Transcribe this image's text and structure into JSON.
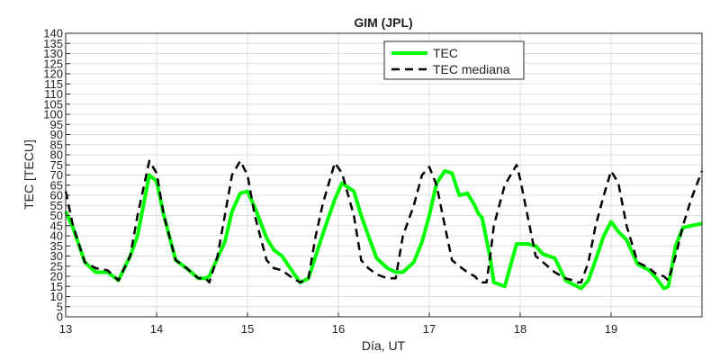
{
  "chart_data": {
    "type": "line",
    "title": "GIM (JPL)",
    "xlabel": "Día, UT",
    "ylabel": "TEC [TECU]",
    "xlim": [
      13,
      20
    ],
    "ylim": [
      0,
      140
    ],
    "x_ticks": [
      13,
      14,
      15,
      16,
      17,
      18,
      19
    ],
    "y_ticks": [
      0,
      5,
      10,
      15,
      20,
      25,
      30,
      35,
      40,
      45,
      50,
      55,
      60,
      65,
      70,
      75,
      80,
      85,
      90,
      95,
      100,
      105,
      110,
      115,
      120,
      125,
      130,
      135,
      140
    ],
    "grid": true,
    "legend_position": "top-right",
    "series": [
      {
        "name": "TEC",
        "color": "#00ff00",
        "style": "solid",
        "x": [
          13.0,
          13.08,
          13.21,
          13.33,
          13.46,
          13.58,
          13.71,
          13.79,
          13.92,
          14.0,
          14.08,
          14.21,
          14.33,
          14.46,
          14.54,
          14.58,
          14.67,
          14.75,
          14.83,
          14.92,
          15.0,
          15.08,
          15.21,
          15.29,
          15.38,
          15.5,
          15.58,
          15.67,
          15.75,
          15.83,
          15.96,
          16.04,
          16.17,
          16.25,
          16.33,
          16.42,
          16.54,
          16.63,
          16.71,
          16.83,
          16.92,
          17.0,
          17.08,
          17.17,
          17.25,
          17.33,
          17.42,
          17.5,
          17.54,
          17.58,
          17.63,
          17.67,
          17.71,
          17.83,
          17.96,
          18.0,
          18.08,
          18.17,
          18.25,
          18.38,
          18.5,
          18.58,
          18.63,
          18.67,
          18.75,
          18.83,
          18.92,
          19.0,
          19.08,
          19.17,
          19.29,
          19.42,
          19.5,
          19.58,
          19.63,
          19.71,
          19.79,
          19.88,
          20.0
        ],
        "y": [
          52,
          44,
          27,
          22,
          22,
          18,
          30,
          40,
          70,
          67,
          50,
          28,
          24,
          19,
          19,
          20,
          29,
          37,
          52,
          61,
          62,
          54,
          39,
          33,
          30,
          22,
          17,
          19,
          30,
          41,
          58,
          66,
          62,
          50,
          40,
          29,
          24,
          22,
          22,
          27,
          37,
          50,
          66,
          72,
          71,
          60,
          61,
          55,
          51,
          49,
          38,
          29,
          17,
          15,
          36,
          36,
          36,
          35,
          31,
          29,
          18,
          16,
          15,
          14,
          18,
          28,
          40,
          47,
          42,
          38,
          26,
          23,
          19,
          14,
          15,
          35,
          44,
          45,
          46
        ]
      },
      {
        "name": "TEC mediana",
        "color": "#000000",
        "style": "dashed",
        "x": [
          13.0,
          13.08,
          13.21,
          13.33,
          13.46,
          13.58,
          13.71,
          13.79,
          13.92,
          14.0,
          14.08,
          14.21,
          14.33,
          14.46,
          14.54,
          14.58,
          14.67,
          14.75,
          14.83,
          14.92,
          15.0,
          15.08,
          15.21,
          15.29,
          15.38,
          15.5,
          15.58,
          15.67,
          15.75,
          15.83,
          15.96,
          16.04,
          16.17,
          16.25,
          16.33,
          16.42,
          16.54,
          16.63,
          16.71,
          16.83,
          16.92,
          17.0,
          17.08,
          17.17,
          17.25,
          17.33,
          17.42,
          17.5,
          17.54,
          17.58,
          17.63,
          17.67,
          17.71,
          17.83,
          17.96,
          18.0,
          18.08,
          18.17,
          18.25,
          18.38,
          18.5,
          18.58,
          18.63,
          18.67,
          18.75,
          18.83,
          18.92,
          19.0,
          19.08,
          19.17,
          19.29,
          19.42,
          19.5,
          19.58,
          19.63,
          19.71,
          19.79,
          19.88,
          20.0
        ],
        "y": [
          62,
          45,
          27,
          24,
          23,
          18,
          30,
          50,
          77,
          71,
          50,
          28,
          24,
          19,
          19,
          17,
          30,
          50,
          70,
          77,
          70,
          50,
          28,
          24,
          23,
          19,
          17,
          19,
          40,
          56,
          76,
          71,
          50,
          28,
          24,
          21,
          19,
          19,
          40,
          55,
          70,
          74,
          65,
          45,
          28,
          25,
          22,
          20,
          18,
          17,
          17,
          30,
          45,
          65,
          75,
          68,
          50,
          30,
          27,
          22,
          19,
          18,
          17,
          17,
          27,
          45,
          60,
          72,
          66,
          45,
          27,
          24,
          21,
          20,
          18,
          30,
          45,
          58,
          72
        ]
      }
    ]
  }
}
